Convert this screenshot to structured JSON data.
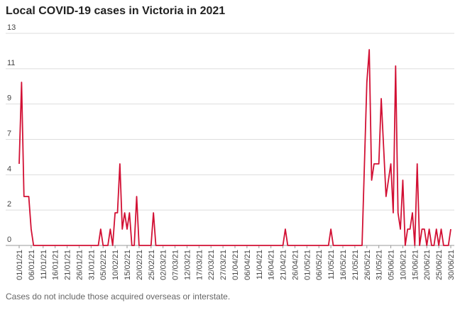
{
  "chart_data": {
    "type": "line",
    "title": "Local COVID-19 cases in Victoria in 2021",
    "footnote": "Cases do not include those acquired overseas or interstate.",
    "categories": [
      "01/01/21",
      null,
      null,
      null,
      null,
      "06/01/21",
      null,
      null,
      null,
      null,
      "11/01/21",
      null,
      null,
      null,
      null,
      "16/01/21",
      null,
      null,
      null,
      null,
      "21/01/21",
      null,
      null,
      null,
      null,
      "26/01/21",
      null,
      null,
      null,
      null,
      "31/01/21",
      null,
      null,
      null,
      null,
      "05/02/21",
      null,
      null,
      null,
      null,
      "10/02/21",
      null,
      null,
      null,
      null,
      "15/02/21",
      null,
      null,
      null,
      null,
      "20/02/21",
      null,
      null,
      null,
      null,
      "25/02/21",
      null,
      null,
      null,
      null,
      "02/03/21",
      null,
      null,
      null,
      null,
      "07/03/21",
      null,
      null,
      null,
      null,
      "12/03/21",
      null,
      null,
      null,
      null,
      "17/03/21",
      null,
      null,
      null,
      null,
      "22/03/21",
      null,
      null,
      null,
      null,
      "27/03/21",
      null,
      null,
      null,
      null,
      "01/04/21",
      null,
      null,
      null,
      null,
      "06/04/21",
      null,
      null,
      null,
      null,
      "11/04/21",
      null,
      null,
      null,
      null,
      "16/04/21",
      null,
      null,
      null,
      null,
      "21/04/21",
      null,
      null,
      null,
      null,
      "26/04/21",
      null,
      null,
      null,
      null,
      "01/05/21",
      null,
      null,
      null,
      null,
      "06/05/21",
      null,
      null,
      null,
      null,
      "11/05/21",
      null,
      null,
      null,
      null,
      "16/05/21",
      null,
      null,
      null,
      null,
      "21/05/21",
      null,
      null,
      null,
      null,
      "26/05/21",
      null,
      null,
      null,
      null,
      "31/05/21",
      null,
      null,
      null,
      null,
      "05/06/21",
      null,
      null,
      null,
      null,
      "10/06/21",
      null,
      null,
      null,
      null,
      "15/06/21",
      null,
      null,
      null,
      null,
      "20/06/21",
      null,
      null,
      null,
      null,
      "25/06/21",
      null,
      null,
      null,
      null,
      "30/06/21"
    ],
    "series": [
      {
        "name": "Local cases",
        "color": "#d21034",
        "values": [
          5,
          10,
          3,
          3,
          3,
          1,
          0,
          0,
          0,
          0,
          0,
          0,
          0,
          0,
          0,
          0,
          0,
          0,
          0,
          0,
          0,
          0,
          0,
          0,
          0,
          0,
          0,
          0,
          0,
          0,
          0,
          0,
          0,
          0,
          1,
          0,
          0,
          0,
          1,
          0,
          2,
          2,
          5,
          1,
          2,
          1,
          2,
          0,
          0,
          3,
          0,
          0,
          0,
          0,
          0,
          0,
          2,
          0,
          0,
          0,
          0,
          0,
          0,
          0,
          0,
          0,
          0,
          0,
          0,
          0,
          0,
          0,
          0,
          0,
          0,
          0,
          0,
          0,
          0,
          0,
          0,
          0,
          0,
          0,
          0,
          0,
          0,
          0,
          0,
          0,
          0,
          0,
          0,
          0,
          0,
          0,
          0,
          0,
          0,
          0,
          0,
          0,
          0,
          0,
          0,
          0,
          0,
          0,
          0,
          0,
          0,
          1,
          0,
          0,
          0,
          0,
          0,
          0,
          0,
          0,
          0,
          0,
          0,
          0,
          0,
          0,
          0,
          0,
          0,
          0,
          1,
          0,
          0,
          0,
          0,
          0,
          0,
          0,
          0,
          0,
          0,
          0,
          0,
          0,
          5,
          10,
          12,
          4,
          5,
          5,
          5,
          9,
          6,
          3,
          4,
          5,
          2,
          11,
          2,
          1,
          4,
          0,
          1,
          1,
          2,
          0,
          5,
          0,
          1,
          1,
          0,
          1,
          0,
          0,
          1,
          0,
          1,
          0,
          0,
          0,
          1
        ]
      }
    ],
    "ylim": [
      0,
      13
    ],
    "yticks": [
      0,
      {
        "value": 2.1667,
        "label": "2"
      },
      {
        "value": 4.3333,
        "label": "4"
      },
      {
        "value": 6.5,
        "label": "7"
      },
      {
        "value": 8.6667,
        "label": "9"
      },
      {
        "value": 10.8333,
        "label": "11"
      },
      13
    ],
    "grid": true
  }
}
